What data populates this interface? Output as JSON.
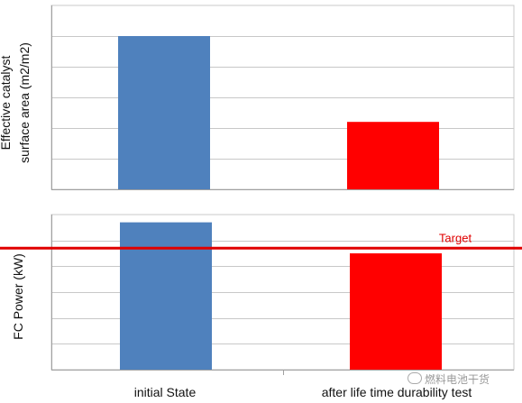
{
  "chart_data": [
    {
      "type": "bar",
      "title": "",
      "xlabel": "",
      "ylabel": "Effective catalyst surface area (m2/m2)",
      "ylabel_lines": [
        "Effective catalyst",
        "surface area (m2/m2)"
      ],
      "categories": [
        "initial State",
        "after life time durability test"
      ],
      "values": [
        5,
        2.2
      ],
      "bar_colors": [
        "#4f81bd",
        "#ff0000"
      ],
      "ylim": [
        0,
        6
      ],
      "grid": true,
      "tick_labels_shown": false,
      "legend": "none"
    },
    {
      "type": "bar",
      "title": "",
      "xlabel": "",
      "ylabel": "FC Power (kW)",
      "categories": [
        "initial State",
        "after life time durability test"
      ],
      "values": [
        5.7,
        4.5
      ],
      "bar_colors": [
        "#4f81bd",
        "#ff0000"
      ],
      "ylim": [
        0,
        6
      ],
      "grid": true,
      "tick_labels_shown": false,
      "legend": "none",
      "reference_line": {
        "label": "Target",
        "value": 4.7,
        "color": "#e00000"
      }
    }
  ],
  "watermark": {
    "text": "燃料电池干货"
  },
  "colors": {
    "grid": "#c8c8c8",
    "axis": "#a0a0a0",
    "bar_initial": "#4f81bd",
    "bar_after": "#ff0000",
    "target": "#e00000"
  }
}
